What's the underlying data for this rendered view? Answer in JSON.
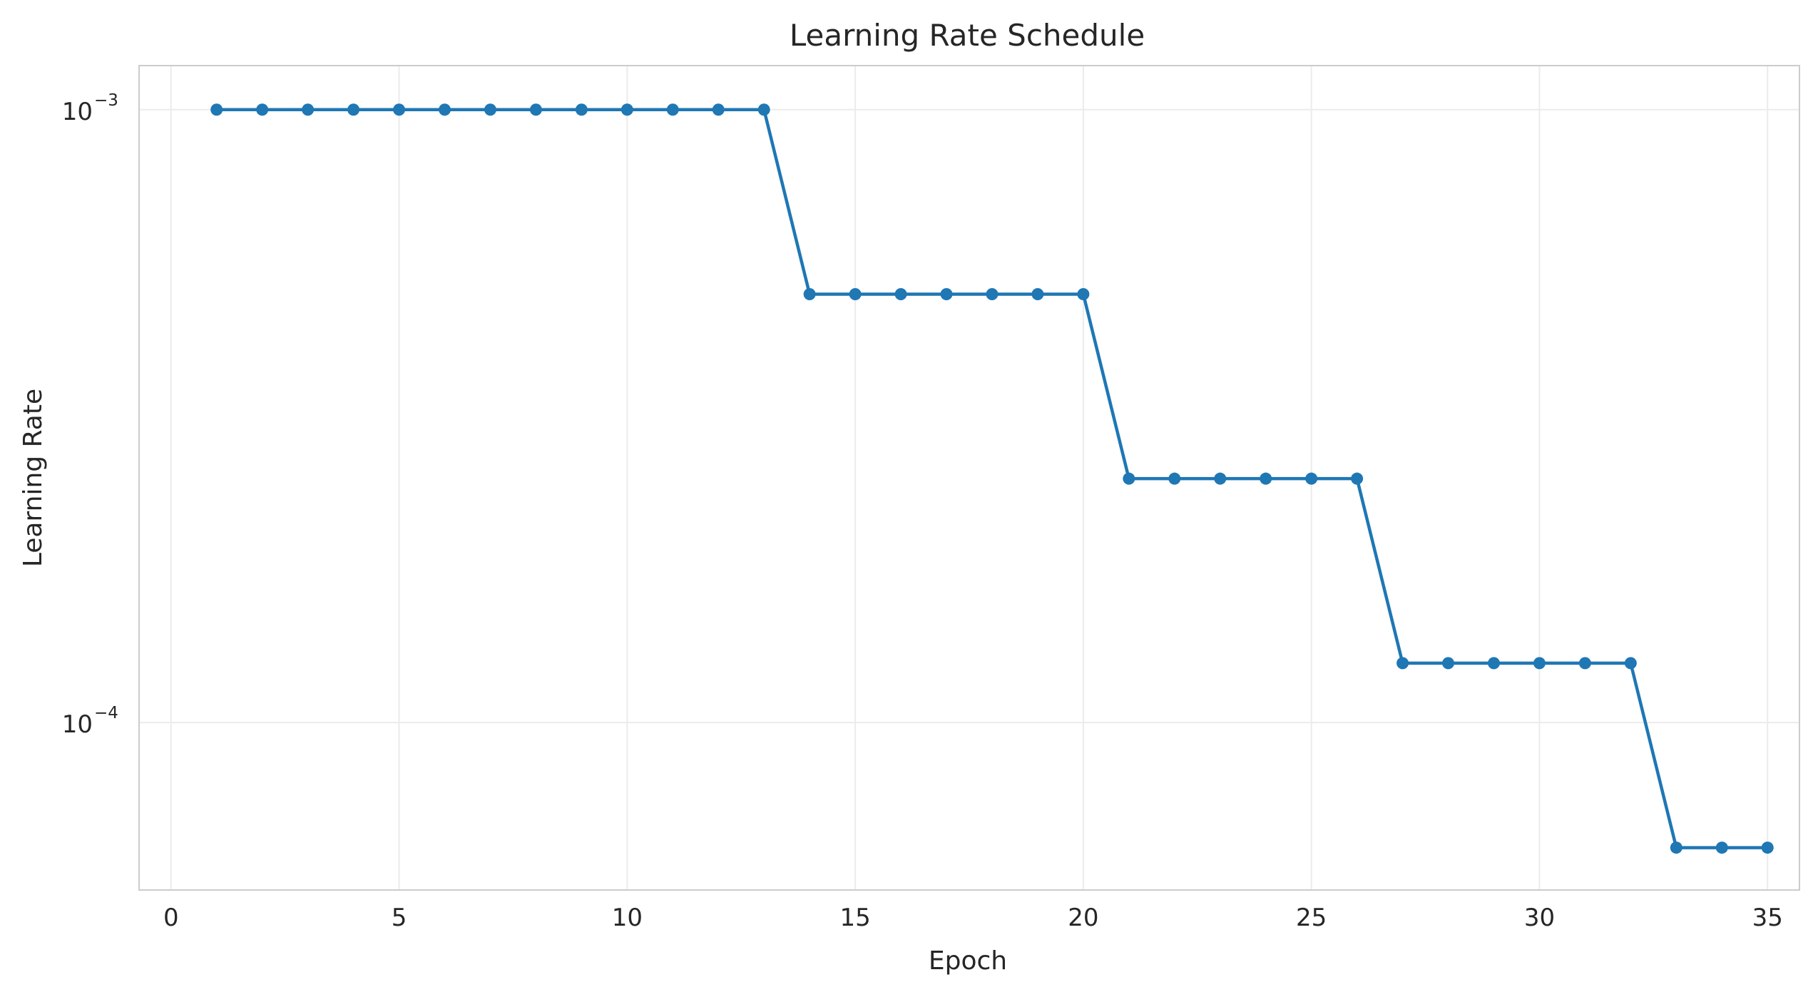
{
  "chart_data": {
    "type": "line",
    "title": "Learning Rate Schedule",
    "xlabel": "Epoch",
    "ylabel": "Learning Rate",
    "xlim": [
      -0.7,
      35.7
    ],
    "ylim": [
      5.33e-05,
      0.00118
    ],
    "yscale": "log",
    "grid": true,
    "x_ticks": [
      0,
      5,
      10,
      15,
      20,
      25,
      30,
      35
    ],
    "x_tick_labels": [
      "0",
      "5",
      "10",
      "15",
      "20",
      "25",
      "30",
      "35"
    ],
    "y_ticks": [
      0.001,
      0.0001
    ],
    "y_tick_labels": [
      {
        "base": "10",
        "exponent": "−3"
      },
      {
        "base": "10",
        "exponent": "−4"
      }
    ],
    "series": [
      {
        "color": "#1f77b4",
        "marker": "circle",
        "x": [
          1,
          2,
          3,
          4,
          5,
          6,
          7,
          8,
          9,
          10,
          11,
          12,
          13,
          14,
          15,
          16,
          17,
          18,
          19,
          20,
          21,
          22,
          23,
          24,
          25,
          26,
          27,
          28,
          29,
          30,
          31,
          32,
          33,
          34,
          35
        ],
        "y": [
          0.001,
          0.001,
          0.001,
          0.001,
          0.001,
          0.001,
          0.001,
          0.001,
          0.001,
          0.001,
          0.001,
          0.001,
          0.001,
          0.0005,
          0.0005,
          0.0005,
          0.0005,
          0.0005,
          0.0005,
          0.0005,
          0.00025,
          0.00025,
          0.00025,
          0.00025,
          0.00025,
          0.00025,
          0.000125,
          0.000125,
          0.000125,
          0.000125,
          0.000125,
          0.000125,
          6.25e-05,
          6.25e-05,
          6.25e-05
        ]
      }
    ]
  },
  "colors": {
    "grid": "#ebebeb",
    "spine": "#cccccc",
    "line": "#1f77b4",
    "text": "#262626"
  }
}
